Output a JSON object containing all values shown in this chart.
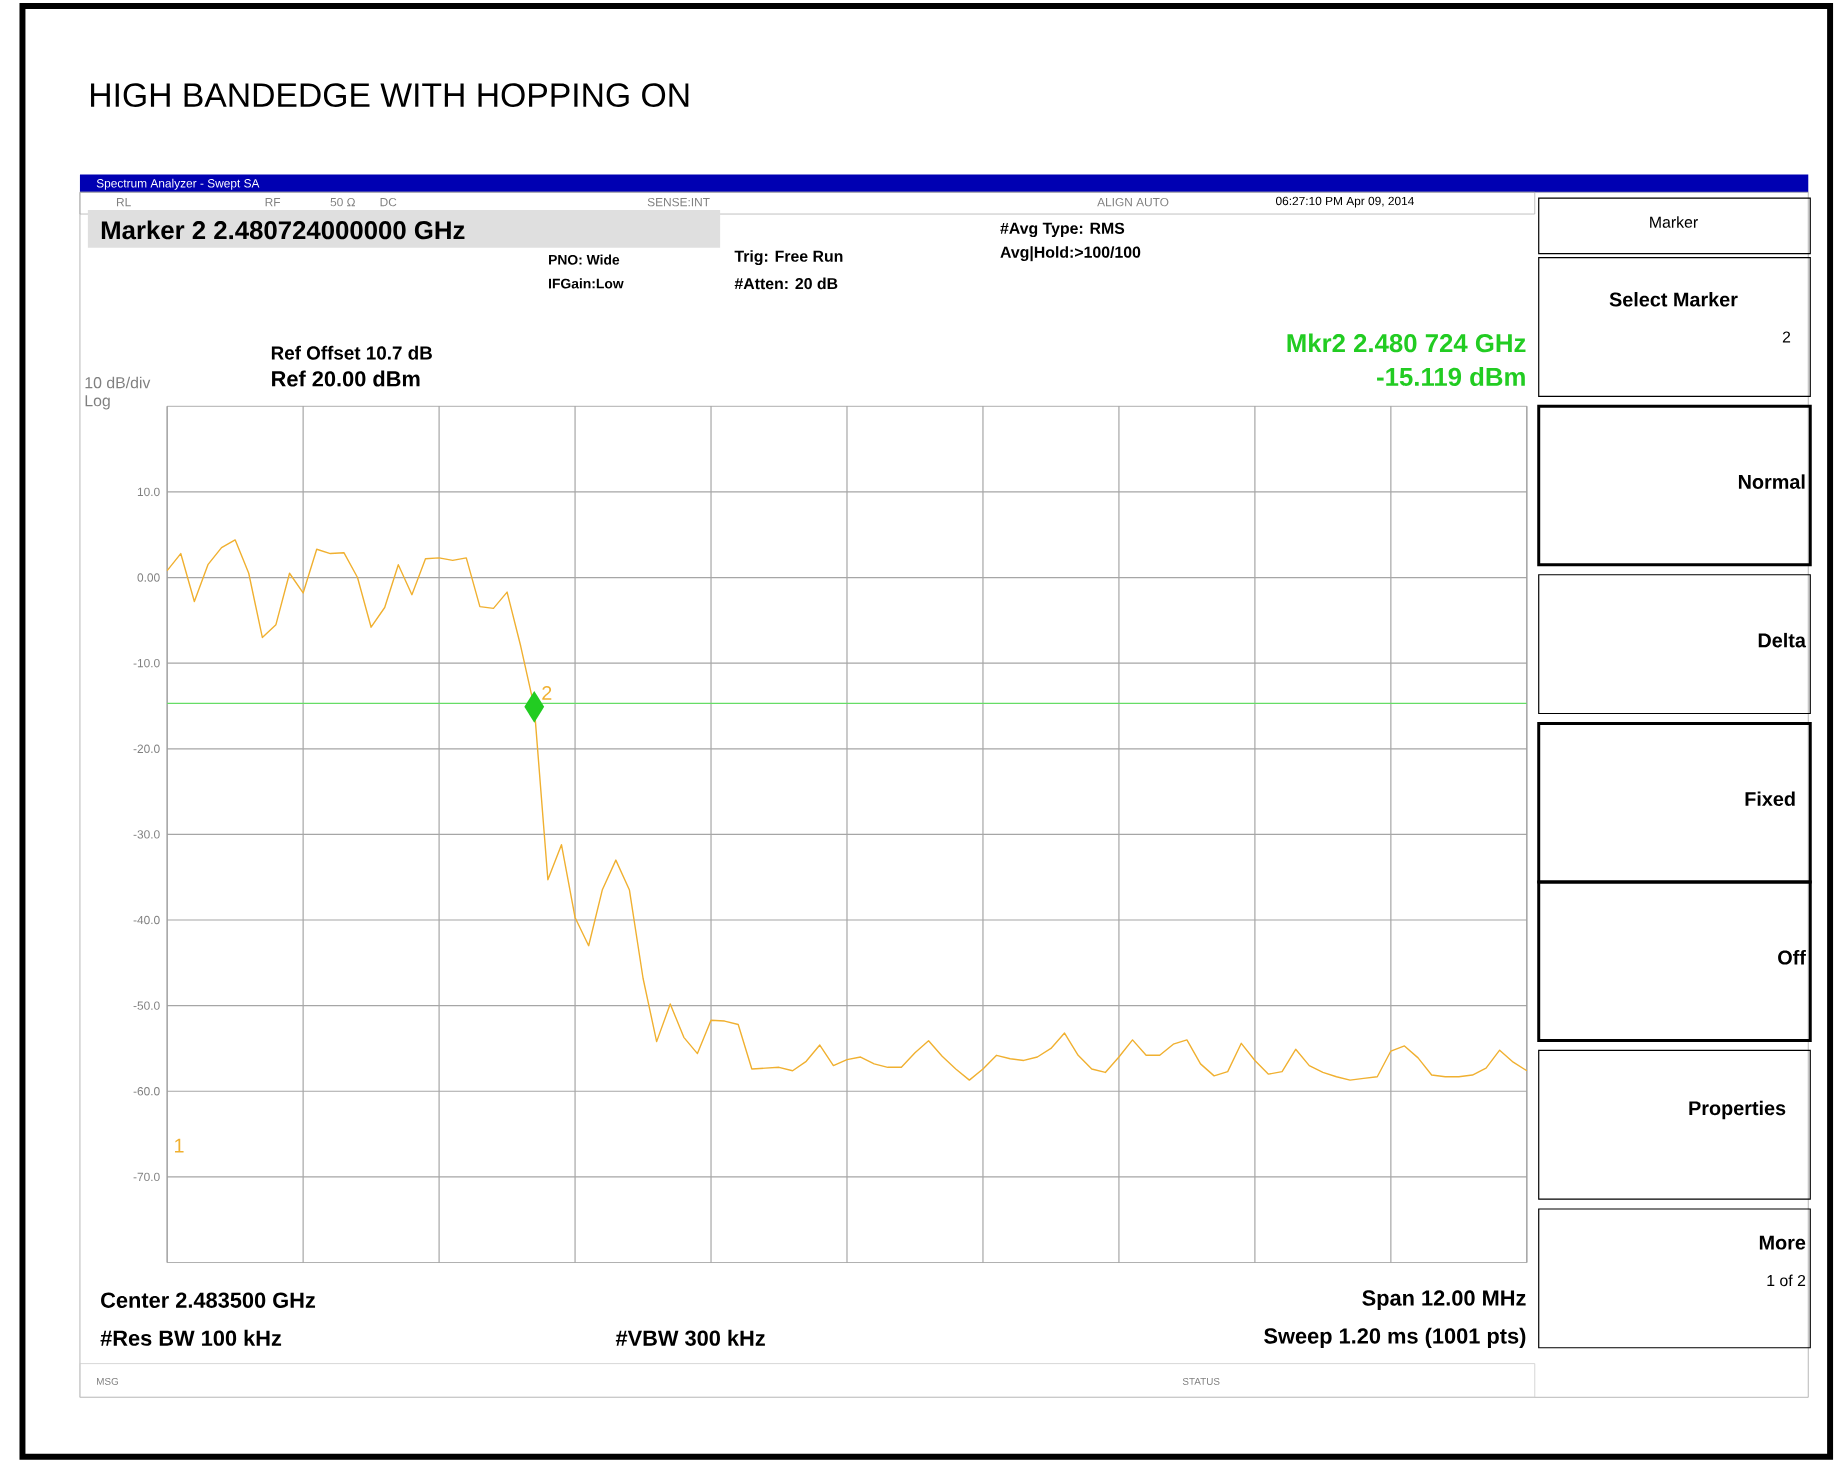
{
  "chart_data": {
    "type": "line",
    "title": "HIGH BANDEDGE WITH HOPPING ON",
    "categories": [
      null,
      null,
      null,
      null,
      null,
      null,
      null,
      null,
      null,
      null,
      null,
      null,
      null,
      null,
      null,
      null,
      null,
      null,
      null,
      null,
      null,
      null,
      null,
      null,
      null,
      null,
      null,
      null,
      null,
      null,
      null,
      null,
      null,
      null,
      null,
      null,
      null,
      null,
      null,
      null,
      null,
      null,
      null,
      null,
      null,
      null,
      null,
      null,
      null,
      null,
      null,
      null,
      null,
      null,
      null,
      null,
      null,
      null,
      null,
      null,
      null,
      null,
      null,
      null,
      null,
      null,
      null,
      null,
      null,
      null,
      null,
      null,
      null,
      null,
      null,
      null,
      null,
      null,
      null,
      null,
      null,
      null,
      null,
      null,
      null,
      null,
      null,
      null,
      null,
      null,
      null,
      null,
      null,
      null,
      null,
      null,
      null,
      null,
      null,
      null,
      null
    ],
    "ylim": [
      -80,
      20
    ],
    "yticks": [
      {
        "value": 10,
        "label": "10.0"
      },
      {
        "value": 0,
        "label": "0.00"
      },
      {
        "value": -10,
        "label": "-10.0"
      },
      {
        "value": -20,
        "label": "-20.0"
      },
      {
        "value": -30,
        "label": "-30.0"
      },
      {
        "value": -40,
        "label": "-40.0"
      },
      {
        "value": -50,
        "label": "-50.0"
      },
      {
        "value": -60,
        "label": "-60.0"
      },
      {
        "value": -70,
        "label": "-70.0"
      }
    ],
    "tick_labels": "y",
    "grid": true,
    "marker": "none",
    "line_style": "solid",
    "ref_lines": [
      {
        "axis": "y",
        "value": -14.7,
        "color": "#66dd66"
      }
    ],
    "series": [
      {
        "color": "#f0b030",
        "values": [
          0.8,
          2.8,
          -2.8,
          1.5,
          3.5,
          4.4,
          0.5,
          -7,
          -5.5,
          0.5,
          -1.8,
          3.3,
          2.8,
          2.9,
          0,
          -5.8,
          -3.5,
          1.5,
          -2.0,
          2.2,
          2.3,
          2.0,
          2.3,
          -3.4,
          -3.6,
          -1.7,
          -8,
          -15.1,
          -35.3,
          -31.2,
          -39.7,
          -43,
          -36.5,
          -33,
          -36.5,
          -46.8,
          -54.2,
          -49.8,
          -53.7,
          -55.6,
          -51.7,
          -51.8,
          -52.2,
          -57.4,
          -57.3,
          -57.2,
          -57.6,
          -56.5,
          -54.6,
          -57,
          -56.3,
          -56,
          -56.8,
          -57.2,
          -57.2,
          -55.5,
          -54.1,
          -55.9,
          -57.4,
          -58.7,
          -57.4,
          -55.8,
          -56.2,
          -56.4,
          -56,
          -55,
          -53.2,
          -55.8,
          -57.4,
          -57.8,
          -56,
          -54,
          -55.8,
          -55.8,
          -54.5,
          -54,
          -56.8,
          -58.2,
          -57.7,
          -54.4,
          -56.4,
          -58,
          -57.7,
          -55.1,
          -57,
          -57.8,
          -58.3,
          -58.7,
          -58.5,
          -58.3,
          -55.3,
          -54.7,
          -56.1,
          -58.1,
          -58.3,
          -58.3,
          -58.1,
          -57.3,
          -55.2,
          -56.6,
          -57.6
        ]
      }
    ],
    "annotations": [
      "Spectrum Analyzer - Swept SA",
      "RL",
      "RF",
      "50 Ω",
      "DC",
      "SENSE:INT",
      "ALIGN AUTO",
      "06:27:10 PM Apr 09, 2014",
      "Marker 2 2.480724000000 GHz",
      "PNO: Wide",
      "IFGain:Low",
      "Trig: Free Run",
      "#Atten: 20 dB",
      "#Avg Type: RMS",
      "Avg|Hold:>100/100",
      "Ref Offset 10.7 dB",
      "Ref 20.00 dBm",
      "10 dB/div",
      "Log",
      "Mkr2 2.480 724 GHz",
      "-15.119 dBm",
      "Center 2.483500 GHz",
      "Span 12.00 MHz",
      "#Res BW 100 kHz",
      "#VBW 300 kHz",
      "Sweep  1.20 ms (1001 pts)",
      "MSG",
      "STATUS",
      "Marker",
      "Select Marker",
      "2",
      "Normal",
      "Delta",
      "Fixed",
      "Off",
      "Properties",
      "More",
      "1 of 2",
      {
        "text": "2",
        "y": -15.1
      },
      "1"
    ]
  }
}
